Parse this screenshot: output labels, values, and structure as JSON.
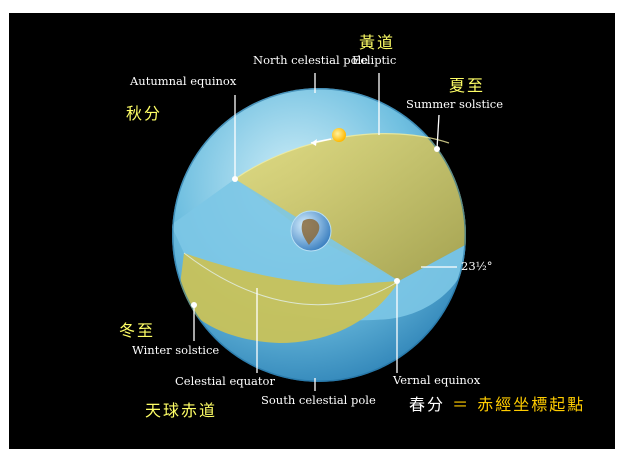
{
  "labels": {
    "north_celestial_pole": "North celestial pole",
    "ecliptic": "Ecliptic",
    "autumnal_equinox": "Autumnal equinox",
    "summer_solstice": "Summer solstice",
    "tilt": "23½°",
    "winter_solstice": "Winter solstice",
    "celestial_equator": "Celestial equator",
    "vernal_equinox": "Vernal equinox",
    "south_celestial_pole": "South celestial pole"
  },
  "labels_zh": {
    "ecliptic": "黃道",
    "summer_solstice": "夏至",
    "autumnal_equinox": "秋分",
    "winter_solstice": "冬至",
    "celestial_equator": "天球赤道",
    "vernal_equinox": "春分",
    "equals": "＝",
    "ra_origin": "赤經坐標起點"
  },
  "colors": {
    "background": "#000000",
    "sphere": "#5fb4d8",
    "ecliptic_plane": "#c8c25a",
    "label_zh": "#ffff66",
    "label_highlight": "#ffcc00",
    "sun": "#ffcc22"
  },
  "icons": [
    "sun-icon",
    "earth-icon"
  ]
}
